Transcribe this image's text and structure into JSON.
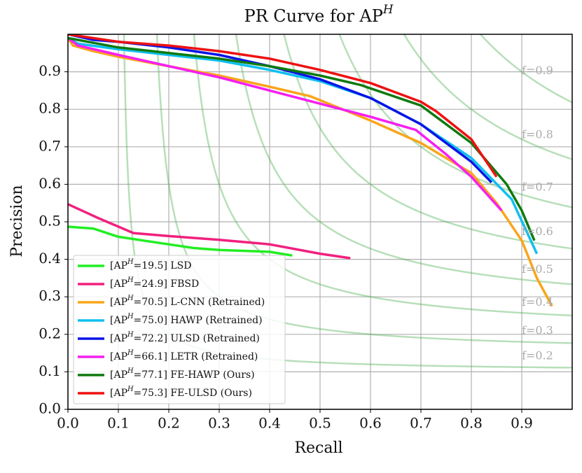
{
  "chart_data": {
    "type": "line",
    "title": "PR Curve for APH",
    "xlabel": "Recall",
    "ylabel": "Precision",
    "xlim": [
      0,
      1
    ],
    "ylim": [
      0,
      1
    ],
    "xticks": [
      {
        "value": 0,
        "label": "0.0"
      },
      0.1,
      0.2,
      0.3,
      0.4,
      0.5,
      0.6,
      0.7,
      0.8,
      0.9
    ],
    "yticks": [
      {
        "value": 0,
        "label": "0.0"
      },
      0.1,
      0.2,
      0.3,
      0.4,
      0.5,
      0.6,
      0.7,
      0.8,
      0.9
    ],
    "grid": true,
    "legend": "lower left",
    "f_curves": [
      {
        "value": 0.2,
        "label": "f=0.2"
      },
      {
        "value": 0.3,
        "label": "f=0.3"
      },
      {
        "value": 0.4,
        "label": "f=0.4"
      },
      {
        "value": 0.5,
        "label": "f=0.5"
      },
      {
        "value": 0.6,
        "label": "f=0.6"
      },
      {
        "value": 0.7,
        "label": "f=0.7"
      },
      {
        "value": 0.8,
        "label": "f=0.8"
      },
      {
        "value": 0.9,
        "label": "f=0.9"
      }
    ],
    "series": [
      {
        "name": "[APH=19.5] LSD",
        "color": "#22ee22",
        "x": [
          0,
          0.05,
          0.1,
          0.15,
          0.2,
          0.25,
          0.3,
          0.4,
          0.445
        ],
        "values": [
          0.487,
          0.482,
          0.46,
          0.45,
          0.44,
          0.43,
          0.425,
          0.42,
          0.41
        ]
      },
      {
        "name": "[APH=24.9] FBSD",
        "color": "#f2207f",
        "x": [
          0,
          0.06,
          0.13,
          0.2,
          0.3,
          0.4,
          0.5,
          0.56
        ],
        "values": [
          0.547,
          0.51,
          0.47,
          0.462,
          0.452,
          0.44,
          0.415,
          0.403
        ]
      },
      {
        "name": "[APH=70.5] L-CNN (Retrained)",
        "color": "#f9a51a",
        "x": [
          0,
          0.01,
          0.05,
          0.1,
          0.2,
          0.3,
          0.4,
          0.48,
          0.6,
          0.7,
          0.8,
          0.85,
          0.9,
          0.93,
          0.95,
          0.96
        ],
        "values": [
          0.99,
          0.97,
          0.955,
          0.94,
          0.915,
          0.89,
          0.86,
          0.835,
          0.77,
          0.71,
          0.63,
          0.55,
          0.45,
          0.35,
          0.3,
          0.275
        ]
      },
      {
        "name": "[APH=75.0] HAWP (Retrained)",
        "color": "#10bff0",
        "x": [
          0,
          0.02,
          0.1,
          0.2,
          0.3,
          0.4,
          0.5,
          0.6,
          0.7,
          0.8,
          0.88,
          0.93
        ],
        "values": [
          0.99,
          0.975,
          0.96,
          0.945,
          0.93,
          0.905,
          0.875,
          0.83,
          0.76,
          0.67,
          0.56,
          0.415
        ]
      },
      {
        "name": "[APH=72.2] ULSD (Retrained)",
        "color": "#0a14e6",
        "x": [
          0,
          0.05,
          0.1,
          0.2,
          0.3,
          0.4,
          0.5,
          0.6,
          0.7,
          0.8,
          0.84
        ],
        "values": [
          1.0,
          0.985,
          0.98,
          0.965,
          0.945,
          0.915,
          0.88,
          0.83,
          0.76,
          0.66,
          0.605
        ]
      },
      {
        "name": "[APH=66.1] LETR (Retrained)",
        "color": "#f51ff0",
        "x": [
          0,
          0.02,
          0.1,
          0.2,
          0.3,
          0.4,
          0.5,
          0.6,
          0.69,
          0.75,
          0.8,
          0.86
        ],
        "values": [
          0.99,
          0.97,
          0.945,
          0.915,
          0.885,
          0.85,
          0.815,
          0.78,
          0.745,
          0.68,
          0.62,
          0.53
        ]
      },
      {
        "name": "[APH=77.1] FE-HAWP (Ours)",
        "color": "#0f7a0f",
        "x": [
          0,
          0.1,
          0.2,
          0.3,
          0.4,
          0.5,
          0.58,
          0.7,
          0.8,
          0.87,
          0.9,
          0.925
        ],
        "values": [
          0.99,
          0.965,
          0.95,
          0.935,
          0.915,
          0.89,
          0.865,
          0.81,
          0.71,
          0.6,
          0.53,
          0.45
        ]
      },
      {
        "name": "[APH=75.3] FE-ULSD (Ours)",
        "color": "#ee1111",
        "x": [
          0,
          0.1,
          0.2,
          0.3,
          0.4,
          0.5,
          0.6,
          0.7,
          0.73,
          0.8,
          0.85
        ],
        "values": [
          1.0,
          0.98,
          0.97,
          0.955,
          0.935,
          0.905,
          0.87,
          0.82,
          0.795,
          0.72,
          0.62
        ]
      }
    ]
  }
}
